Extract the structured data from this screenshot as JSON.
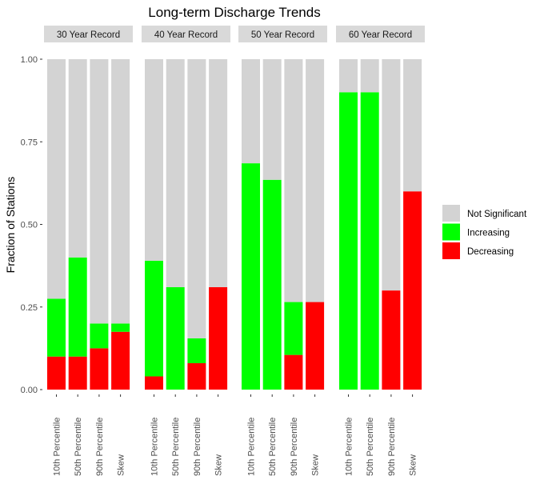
{
  "chart_data": {
    "type": "bar",
    "stacked": true,
    "title": "Long-term Discharge Trends",
    "xlabel": "",
    "ylabel": "Fraction of Stations",
    "ylim": [
      0,
      1
    ],
    "yticks": [
      "0.00",
      "0.25",
      "0.50",
      "0.75",
      "1.00"
    ],
    "ytick_values": [
      0,
      0.25,
      0.5,
      0.75,
      1.0
    ],
    "categories": [
      "10th Percentile",
      "50th Percentile",
      "90th Percentile",
      "Skew"
    ],
    "legend": {
      "placement": "right",
      "entries": [
        {
          "name": "Not Significant",
          "color": "#d3d3d3"
        },
        {
          "name": "Increasing",
          "color": "#00ff00"
        },
        {
          "name": "Decreasing",
          "color": "#ff0000"
        }
      ]
    },
    "panels": [
      {
        "label": "30 Year Record",
        "decreasing": [
          0.1,
          0.1,
          0.125,
          0.175
        ],
        "increasing": [
          0.175,
          0.3,
          0.075,
          0.025
        ],
        "not_significant": [
          0.725,
          0.6,
          0.8,
          0.8
        ]
      },
      {
        "label": "40 Year Record",
        "decreasing": [
          0.04,
          0.0,
          0.08,
          0.31
        ],
        "increasing": [
          0.35,
          0.31,
          0.075,
          0.0
        ],
        "not_significant": [
          0.61,
          0.69,
          0.845,
          0.69
        ]
      },
      {
        "label": "50 Year Record",
        "decreasing": [
          0.0,
          0.0,
          0.105,
          0.265
        ],
        "increasing": [
          0.685,
          0.635,
          0.16,
          0.0
        ],
        "not_significant": [
          0.315,
          0.365,
          0.735,
          0.735
        ]
      },
      {
        "label": "60 Year Record",
        "decreasing": [
          0.0,
          0.0,
          0.3,
          0.6
        ],
        "increasing": [
          0.9,
          0.9,
          0.0,
          0.0
        ],
        "not_significant": [
          0.1,
          0.1,
          0.7,
          0.4
        ]
      }
    ]
  }
}
